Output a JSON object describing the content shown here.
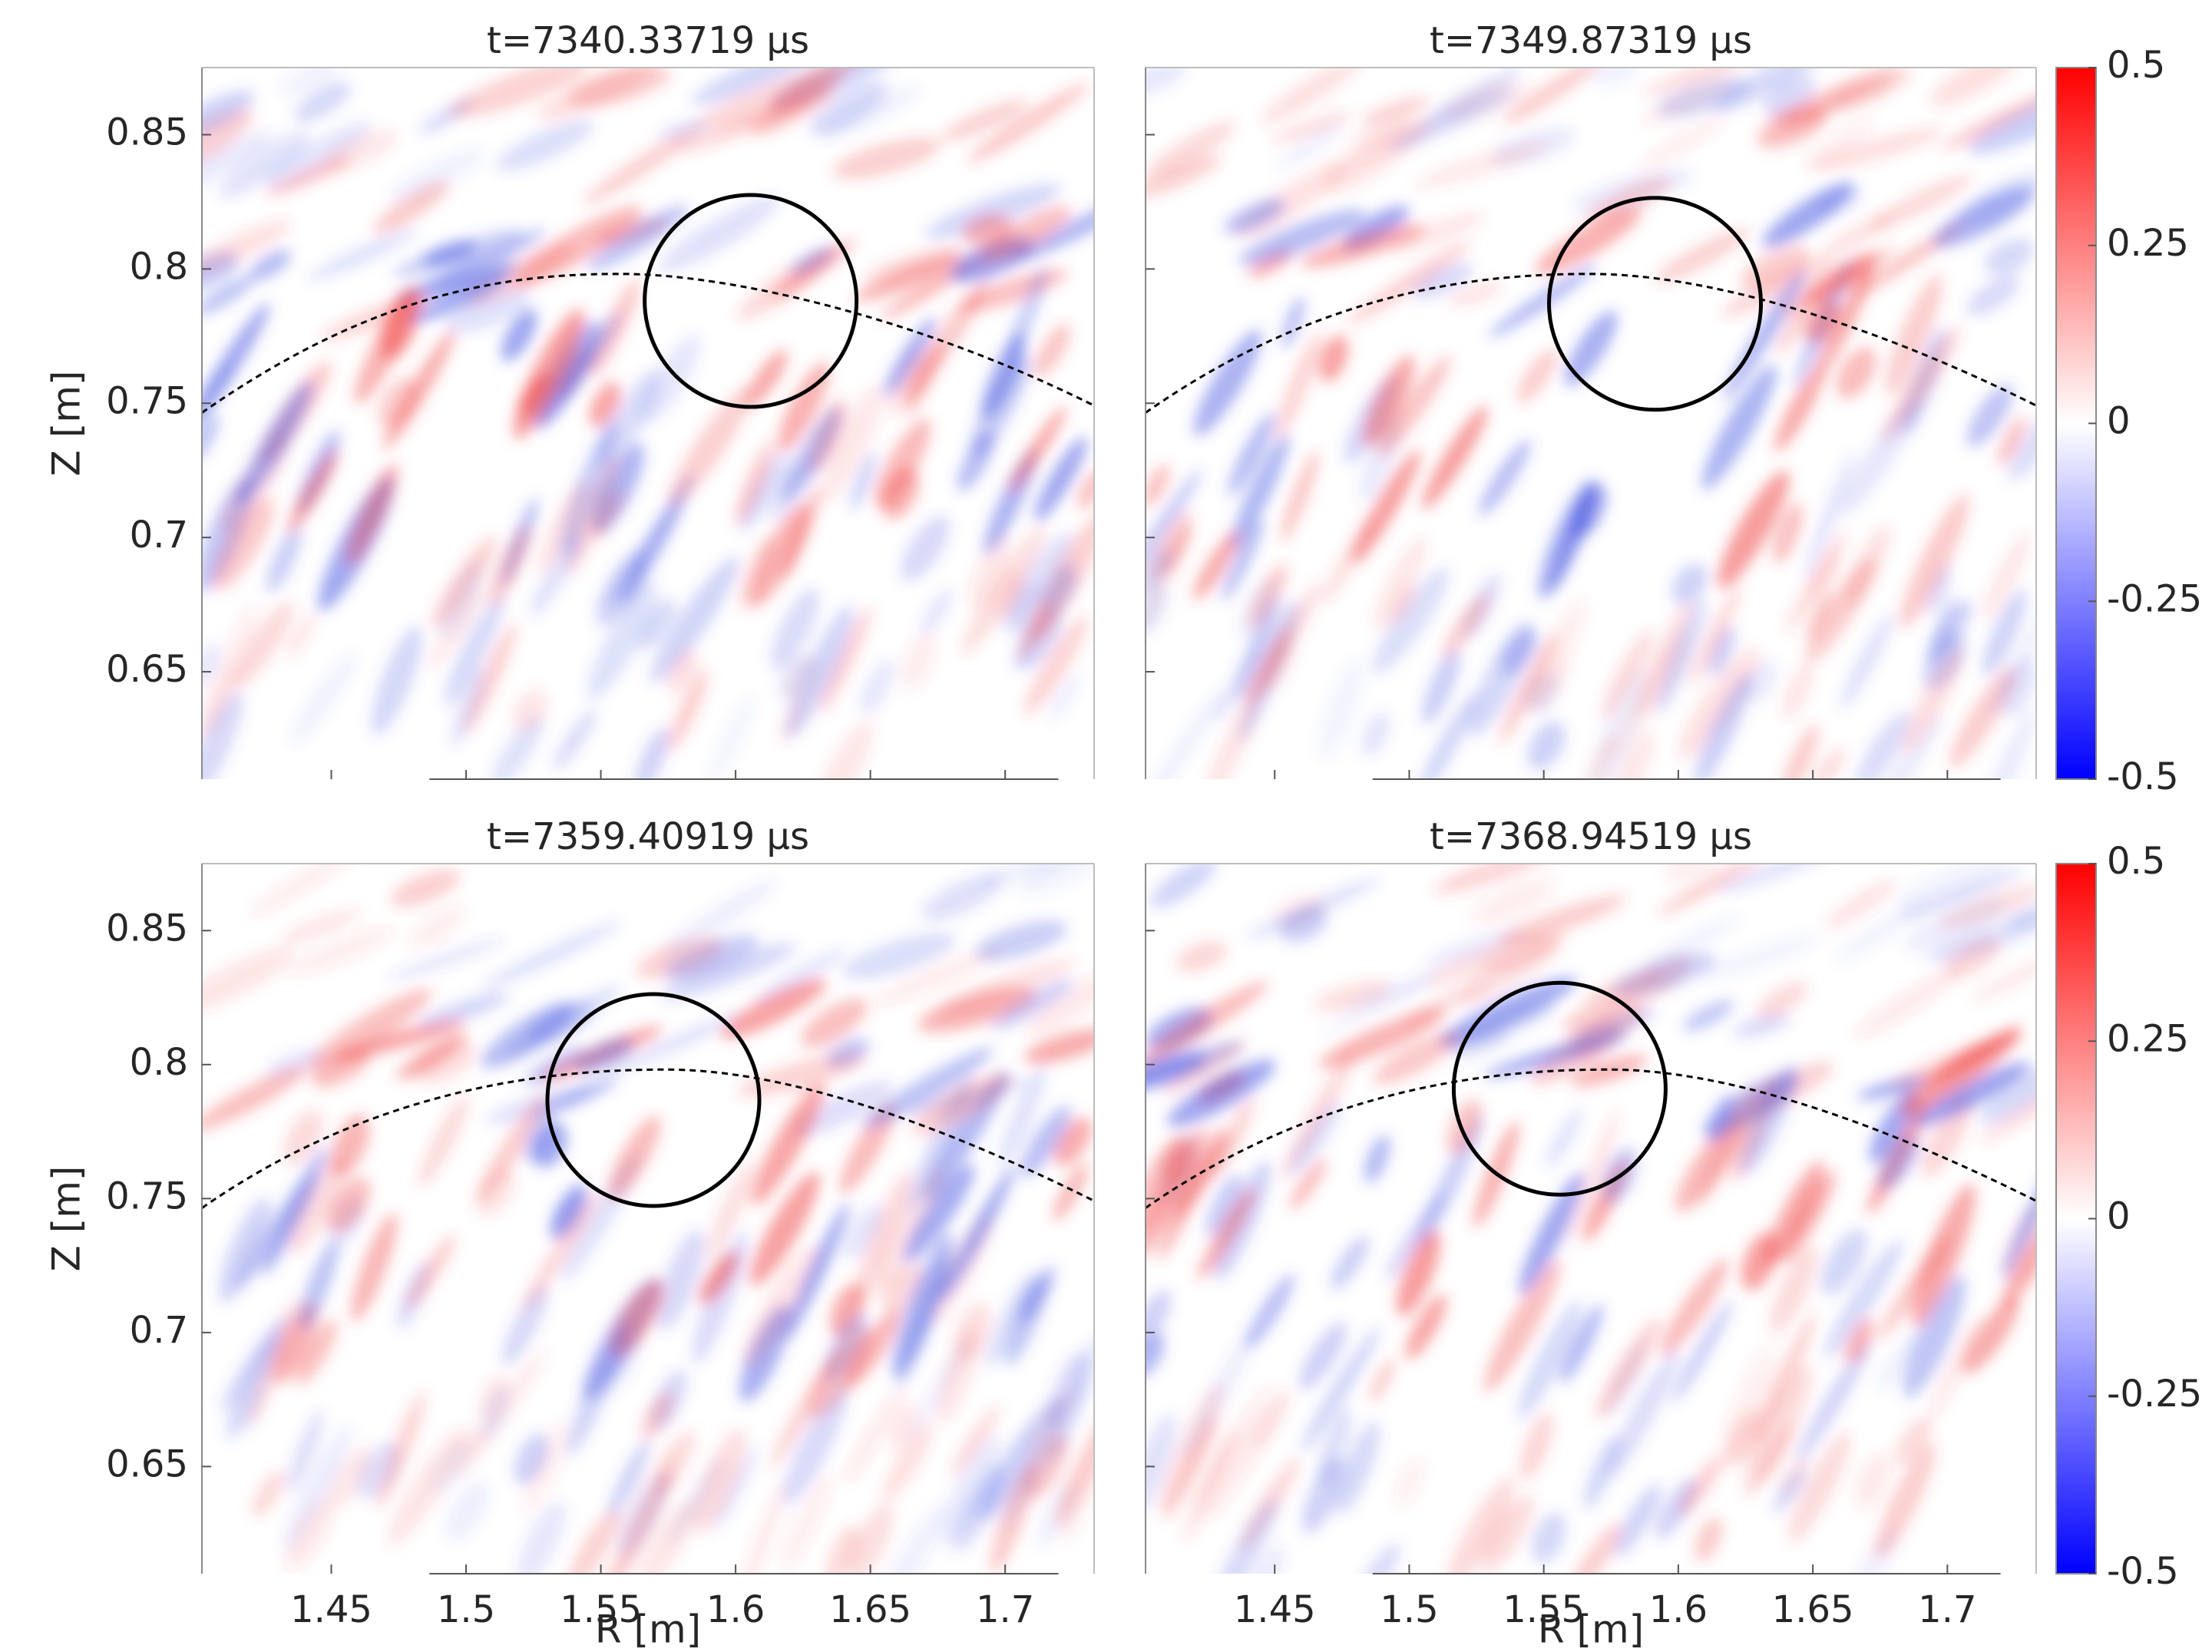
{
  "chart_data": [
    {
      "type": "heatmap",
      "title": "t=7340.33719 μs",
      "ylabel": "Z [m]",
      "xlim": [
        1.402,
        1.733
      ],
      "ylim": [
        0.61,
        0.875
      ],
      "xticks": [
        1.45,
        1.5,
        1.55,
        1.6,
        1.65,
        1.7
      ],
      "yticks": [
        0.65,
        0.7,
        0.75,
        0.8,
        0.85
      ],
      "tick_labels": {
        "x": false,
        "y": true
      }
    },
    {
      "type": "heatmap",
      "title": "t=7349.87319 μs",
      "xlim": [
        1.402,
        1.733
      ],
      "ylim": [
        0.61,
        0.875
      ],
      "xticks": [
        1.45,
        1.5,
        1.55,
        1.6,
        1.65,
        1.7
      ],
      "yticks": [
        0.65,
        0.7,
        0.75,
        0.8,
        0.85
      ],
      "tick_labels": {
        "x": false,
        "y": false
      },
      "colorbar": {
        "clim": [
          -0.5,
          0.5
        ],
        "ticks": [
          -0.5,
          -0.25,
          0,
          0.25,
          0.5
        ],
        "colors": [
          "#0000ff",
          "#ffffff",
          "#ff0000"
        ]
      }
    },
    {
      "type": "heatmap",
      "title": "t=7359.40919 μs",
      "xlabel": "R [m]",
      "ylabel": "Z [m]",
      "xlim": [
        1.402,
        1.733
      ],
      "ylim": [
        0.61,
        0.875
      ],
      "xticks": [
        1.45,
        1.5,
        1.55,
        1.6,
        1.65,
        1.7
      ],
      "yticks": [
        0.65,
        0.7,
        0.75,
        0.8,
        0.85
      ],
      "tick_labels": {
        "x": true,
        "y": true
      }
    },
    {
      "type": "heatmap",
      "title": "t=7368.94519 μs",
      "xlabel": "R [m]",
      "xlim": [
        1.402,
        1.733
      ],
      "ylim": [
        0.61,
        0.875
      ],
      "xticks": [
        1.45,
        1.5,
        1.55,
        1.6,
        1.65,
        1.7
      ],
      "yticks": [
        0.65,
        0.7,
        0.75,
        0.8,
        0.85
      ],
      "tick_labels": {
        "x": true,
        "y": false
      },
      "colorbar": {
        "clim": [
          -0.5,
          0.5
        ],
        "ticks": [
          -0.5,
          -0.25,
          0,
          0.25,
          0.5
        ],
        "colors": [
          "#0000ff",
          "#ffffff",
          "#ff0000"
        ]
      }
    }
  ]
}
